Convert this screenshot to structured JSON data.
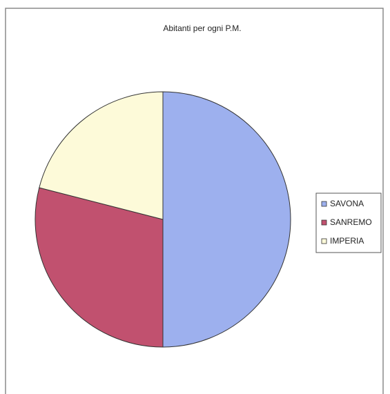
{
  "chart_data": {
    "type": "pie",
    "title": "Abitanti per ogni P.M.",
    "categories": [
      "SAVONA",
      "SANREMO",
      "IMPERIA"
    ],
    "values": [
      50,
      29,
      21
    ],
    "colors": [
      "#9db0ee",
      "#c1516f",
      "#fdfad9"
    ]
  }
}
